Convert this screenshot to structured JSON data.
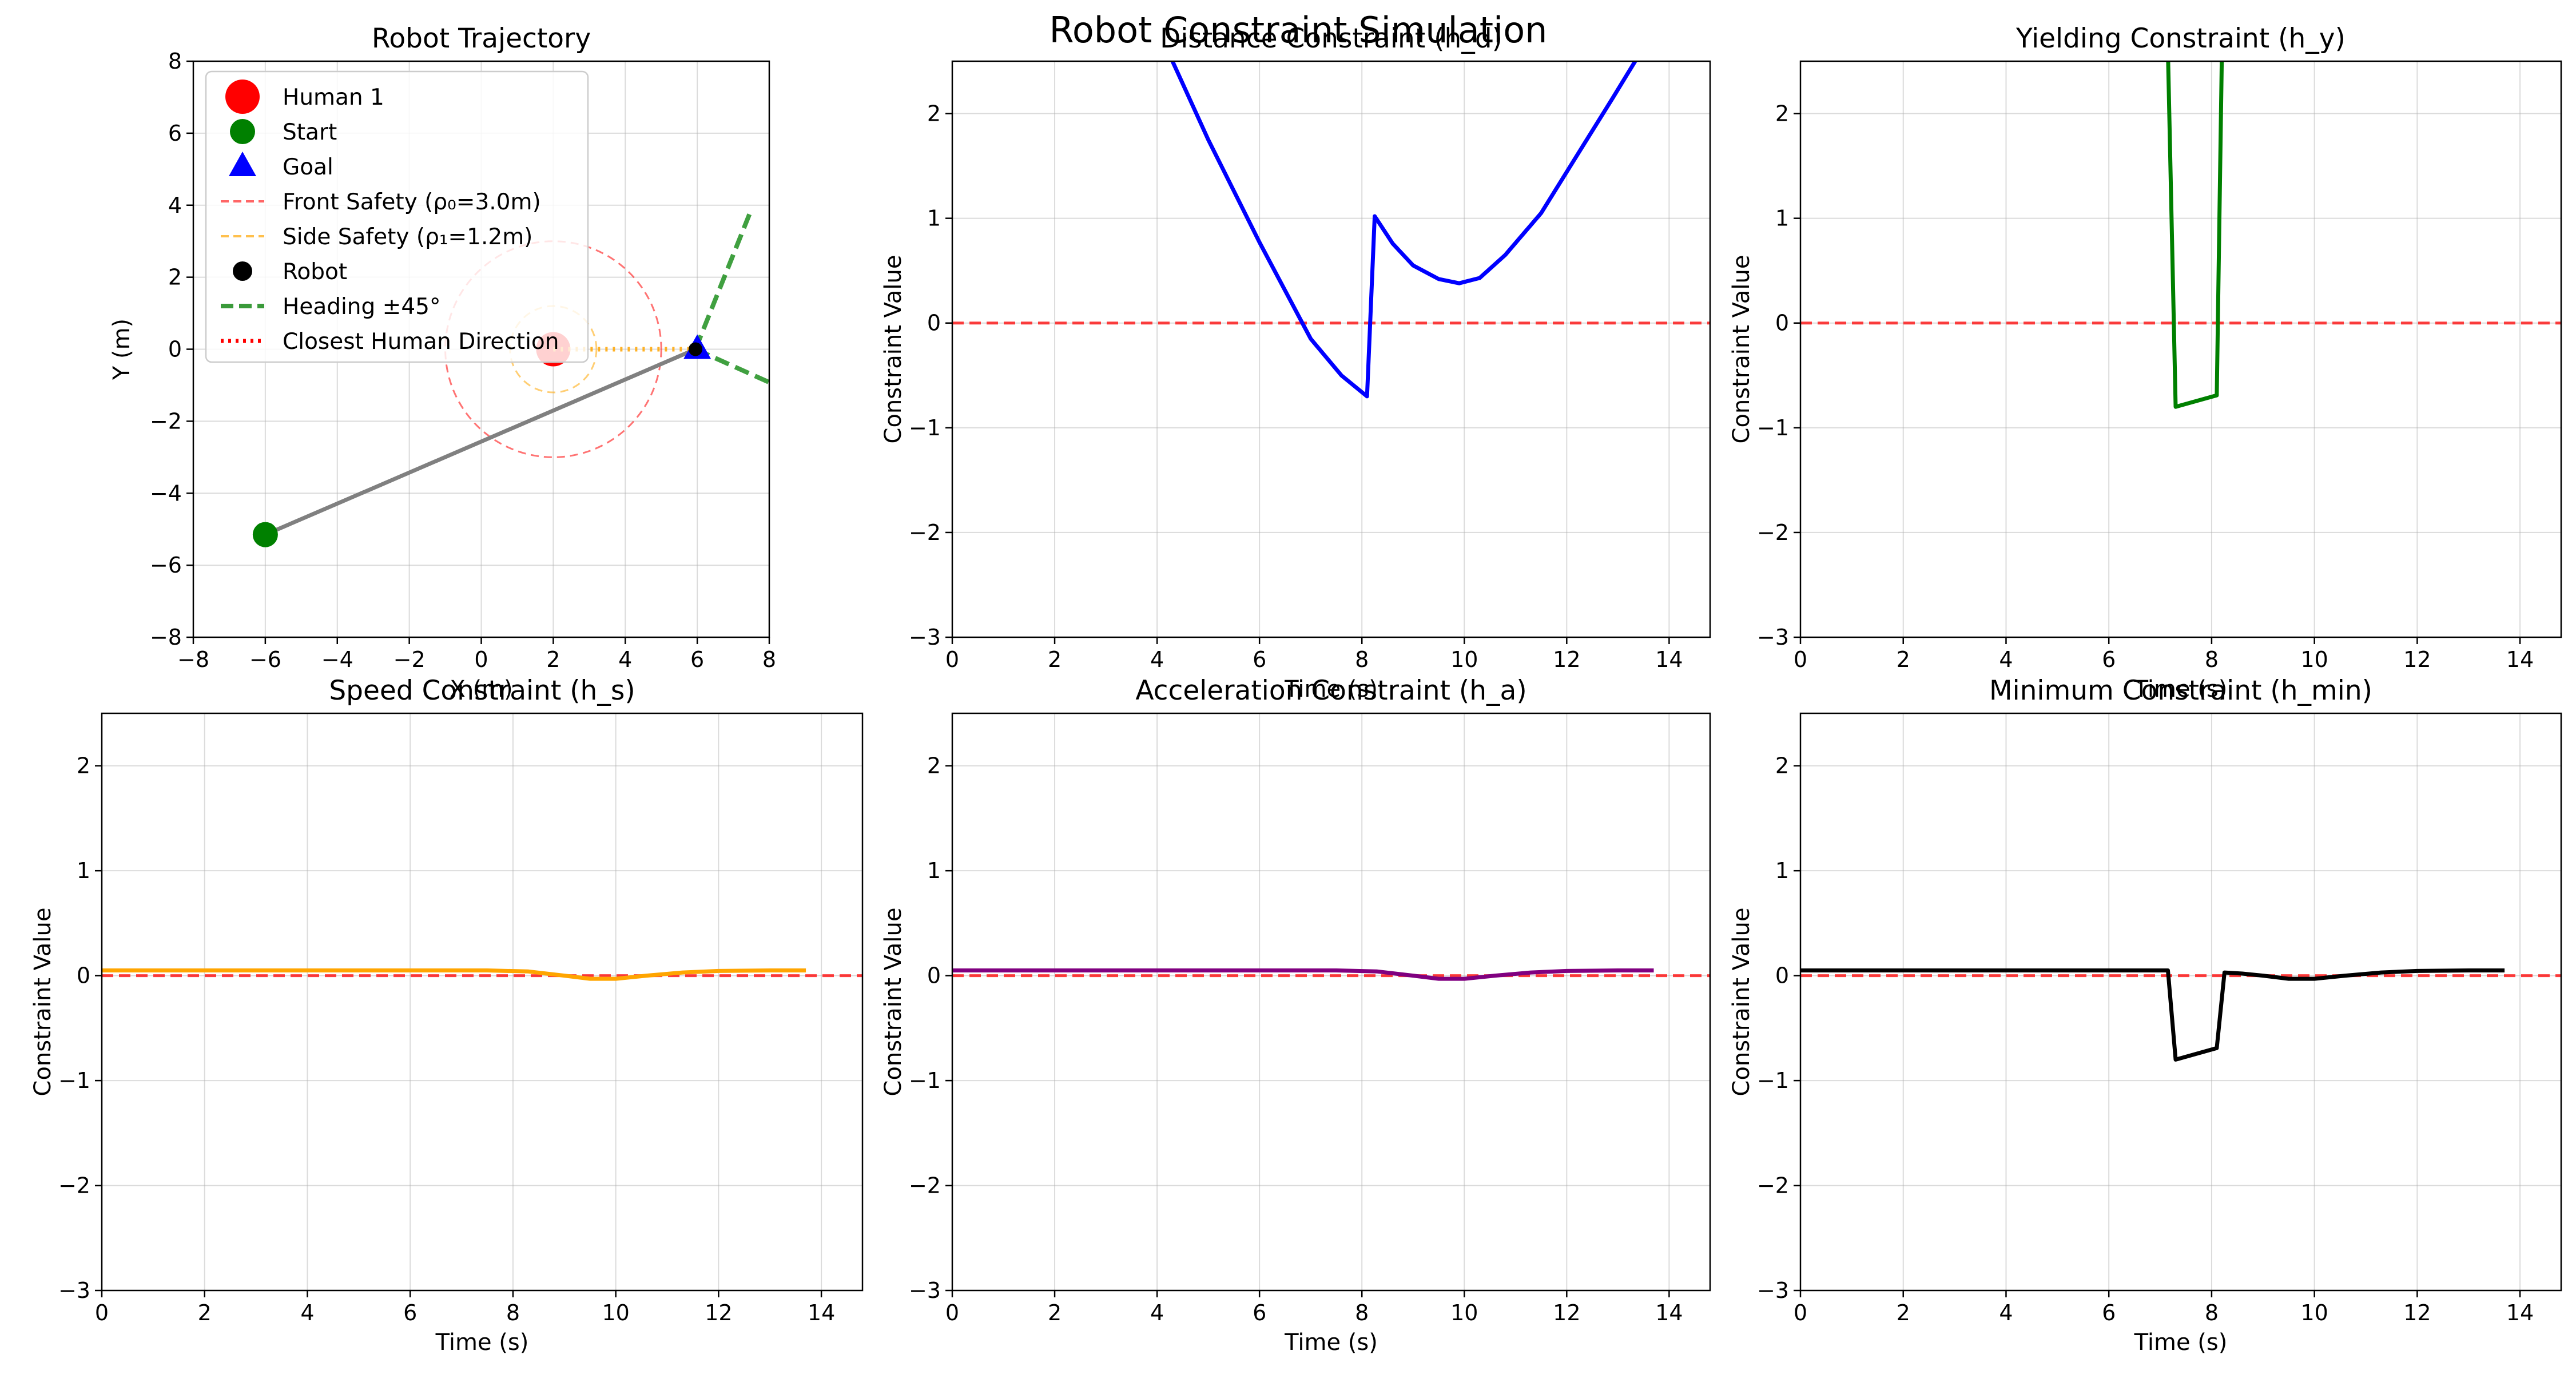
{
  "figure": {
    "suptitle": "Robot Constraint Simulation"
  },
  "colors": {
    "human": "#ff0000",
    "start": "#008000",
    "goal": "#0000ff",
    "front_safety": "#ff0000",
    "side_safety": "#ffa500",
    "robot": "#000000",
    "heading": "#008000",
    "closest": "#ff0000",
    "path": "#808080",
    "zero_line": "#ff0000",
    "distance": "#0000ff",
    "yielding": "#008000",
    "speed": "#ffa500",
    "acceleration": "#800080",
    "minimum": "#000000",
    "grid": "#b0b0b0"
  },
  "chart_data": [
    {
      "id": "trajectory",
      "type": "scatter",
      "title": "Robot Trajectory",
      "xlabel": "X (m)",
      "ylabel": "Y (m)",
      "xlim": [
        -8,
        8
      ],
      "ylim": [
        -8,
        8
      ],
      "xticks": [
        -8,
        -6,
        -4,
        -2,
        0,
        2,
        4,
        6,
        8
      ],
      "yticks": [
        -8,
        -6,
        -4,
        -2,
        0,
        2,
        4,
        6,
        8
      ],
      "grid": true,
      "legend_position": "top-left",
      "legend": [
        {
          "label": "Human 1",
          "marker": "circle-large",
          "color": "#ff0000"
        },
        {
          "label": "Start",
          "marker": "circle",
          "color": "#008000"
        },
        {
          "label": "Goal",
          "marker": "triangle",
          "color": "#0000ff"
        },
        {
          "label": "Front Safety (ρ₀=3.0m)",
          "marker": "dashed-line",
          "color": "#ff6666"
        },
        {
          "label": "Side Safety (ρ₁=1.2m)",
          "marker": "dashed-line",
          "color": "#ffc04d"
        },
        {
          "label": "Robot",
          "marker": "dot",
          "color": "#000000"
        },
        {
          "label": "Heading ±45°",
          "marker": "dashed-line-thick",
          "color": "#3a9a3a"
        },
        {
          "label": "Closest Human Direction",
          "marker": "dotted-line",
          "color": "#ff0000"
        }
      ],
      "human": {
        "x": 2,
        "y": 0
      },
      "start": {
        "x": -6,
        "y": -5.15
      },
      "goal": {
        "x": 6,
        "y": 0
      },
      "robot": {
        "x": 5.95,
        "y": 0
      },
      "path": {
        "x": [
          -6,
          5.95
        ],
        "y": [
          -5.15,
          0
        ]
      },
      "front_safety_radius": 3.0,
      "side_safety_radius": 1.2,
      "heading_lines": [
        {
          "x": [
            5.95,
            7.45
          ],
          "y": [
            0,
            3.75
          ]
        },
        {
          "x": [
            5.95,
            8.0
          ],
          "y": [
            0,
            -0.92
          ]
        }
      ],
      "closest_direction": {
        "x": [
          2,
          5.95
        ],
        "y": [
          0,
          0
        ]
      }
    },
    {
      "id": "distance",
      "type": "line",
      "title": "Distance Constraint (h_d)",
      "xlabel": "Time (s)",
      "ylabel": "Constraint Value",
      "xlim": [
        0,
        14.8
      ],
      "ylim": [
        -3,
        2.5
      ],
      "xticks": [
        0,
        2,
        4,
        6,
        8,
        10,
        12,
        14
      ],
      "yticks": [
        -3,
        -2,
        -1,
        0,
        1,
        2
      ],
      "grid": true,
      "series": [
        {
          "color": "#0000ff",
          "x": [
            4.3,
            5.0,
            6.0,
            7.0,
            7.6,
            8.1,
            8.25,
            8.6,
            9.0,
            9.5,
            9.9,
            10.3,
            10.8,
            11.5,
            12.2,
            12.9,
            13.4
          ],
          "y": [
            2.5,
            1.75,
            0.77,
            -0.15,
            -0.5,
            -0.7,
            1.02,
            0.76,
            0.55,
            0.42,
            0.38,
            0.43,
            0.65,
            1.05,
            1.6,
            2.15,
            2.55
          ]
        }
      ],
      "zero_line": 0
    },
    {
      "id": "yielding",
      "type": "line",
      "title": "Yielding Constraint (h_y)",
      "xlabel": "Time (s)",
      "ylabel": "Constraint Value",
      "xlim": [
        0,
        14.8
      ],
      "ylim": [
        -3,
        2.5
      ],
      "xticks": [
        0,
        2,
        4,
        6,
        8,
        10,
        12,
        14
      ],
      "yticks": [
        -3,
        -2,
        -1,
        0,
        1,
        2
      ],
      "grid": true,
      "series": [
        {
          "color": "#008000",
          "x": [
            7.15,
            7.3,
            8.1,
            8.2
          ],
          "y": [
            2.6,
            -0.8,
            -0.69,
            2.6
          ]
        }
      ],
      "zero_line": 0
    },
    {
      "id": "speed",
      "type": "line",
      "title": "Speed Constraint (h_s)",
      "xlabel": "Time (s)",
      "ylabel": "Constraint Value",
      "xlim": [
        0,
        14.8
      ],
      "ylim": [
        -3,
        2.5
      ],
      "xticks": [
        0,
        2,
        4,
        6,
        8,
        10,
        12,
        14
      ],
      "yticks": [
        -3,
        -2,
        -1,
        0,
        1,
        2
      ],
      "grid": true,
      "series": [
        {
          "color": "#ffa500",
          "x": [
            0,
            7.5,
            8.3,
            9.0,
            9.5,
            10.0,
            10.6,
            11.3,
            12.0,
            13.0,
            13.7
          ],
          "y": [
            0.05,
            0.05,
            0.04,
            0.0,
            -0.03,
            -0.03,
            0.0,
            0.03,
            0.045,
            0.05,
            0.05
          ]
        }
      ],
      "zero_line": 0
    },
    {
      "id": "acceleration",
      "type": "line",
      "title": "Acceleration Constraint (h_a)",
      "xlabel": "Time (s)",
      "ylabel": "Constraint Value",
      "xlim": [
        0,
        14.8
      ],
      "ylim": [
        -3,
        2.5
      ],
      "xticks": [
        0,
        2,
        4,
        6,
        8,
        10,
        12,
        14
      ],
      "yticks": [
        -3,
        -2,
        -1,
        0,
        1,
        2
      ],
      "grid": true,
      "series": [
        {
          "color": "#800080",
          "x": [
            0,
            7.5,
            8.3,
            9.0,
            9.5,
            10.0,
            10.6,
            11.3,
            12.0,
            13.0,
            13.7
          ],
          "y": [
            0.05,
            0.05,
            0.04,
            0.0,
            -0.03,
            -0.03,
            0.0,
            0.03,
            0.045,
            0.05,
            0.05
          ]
        }
      ],
      "zero_line": 0
    },
    {
      "id": "minimum",
      "type": "line",
      "title": "Minimum Constraint (h_min)",
      "xlabel": "Time (s)",
      "ylabel": "Constraint Value",
      "xlim": [
        0,
        14.8
      ],
      "ylim": [
        -3,
        2.5
      ],
      "xticks": [
        0,
        2,
        4,
        6,
        8,
        10,
        12,
        14
      ],
      "yticks": [
        -3,
        -2,
        -1,
        0,
        1,
        2
      ],
      "grid": true,
      "series": [
        {
          "color": "#000000",
          "x": [
            0,
            7.15,
            7.3,
            8.1,
            8.25,
            8.6,
            9.0,
            9.5,
            10.0,
            10.6,
            11.3,
            12.0,
            13.0,
            13.7
          ],
          "y": [
            0.05,
            0.05,
            -0.8,
            -0.69,
            0.03,
            0.02,
            0.0,
            -0.03,
            -0.03,
            0.0,
            0.03,
            0.045,
            0.05,
            0.05
          ]
        }
      ],
      "zero_line": 0
    }
  ]
}
